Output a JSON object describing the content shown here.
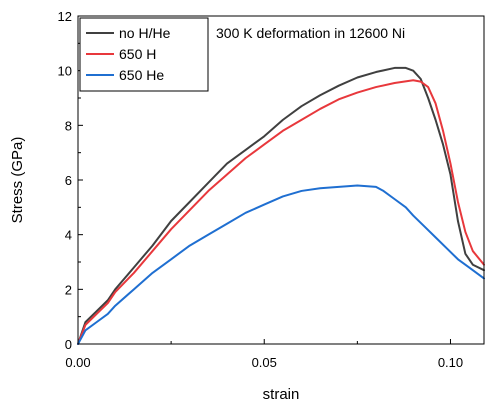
{
  "chart_data": {
    "type": "line",
    "annotation": "300 K deformation in 12600 Ni",
    "xlabel": "strain",
    "ylabel": "Stress (GPa)",
    "xlim": [
      0.0,
      0.109
    ],
    "ylim": [
      0,
      12
    ],
    "x_ticks": [
      0.0,
      0.05,
      0.1
    ],
    "x_tick_labels": [
      "0.00",
      "0.05",
      "0.10"
    ],
    "y_ticks": [
      0,
      2,
      4,
      6,
      8,
      10,
      12
    ],
    "y_tick_labels": [
      "0",
      "2",
      "4",
      "6",
      "8",
      "10",
      "12"
    ],
    "grid": false,
    "legend_position": "top-left",
    "series": [
      {
        "name": "no H/He",
        "color": "#404040",
        "x": [
          0.0,
          0.002,
          0.005,
          0.008,
          0.01,
          0.015,
          0.02,
          0.025,
          0.03,
          0.035,
          0.04,
          0.045,
          0.05,
          0.055,
          0.06,
          0.065,
          0.07,
          0.075,
          0.08,
          0.085,
          0.088,
          0.09,
          0.092,
          0.094,
          0.096,
          0.098,
          0.1,
          0.102,
          0.104,
          0.106,
          0.109
        ],
        "y": [
          0.0,
          0.8,
          1.2,
          1.6,
          2.0,
          2.8,
          3.6,
          4.5,
          5.2,
          5.9,
          6.6,
          7.1,
          7.6,
          8.2,
          8.7,
          9.1,
          9.45,
          9.75,
          9.95,
          10.1,
          10.1,
          10.0,
          9.7,
          9.0,
          8.2,
          7.3,
          6.2,
          4.5,
          3.3,
          2.9,
          2.7
        ]
      },
      {
        "name": "650 H",
        "color": "#e8383c",
        "x": [
          0.0,
          0.002,
          0.005,
          0.008,
          0.01,
          0.015,
          0.02,
          0.025,
          0.03,
          0.035,
          0.04,
          0.045,
          0.05,
          0.055,
          0.06,
          0.065,
          0.07,
          0.075,
          0.08,
          0.085,
          0.09,
          0.092,
          0.094,
          0.096,
          0.098,
          0.1,
          0.102,
          0.104,
          0.106,
          0.109
        ],
        "y": [
          0.0,
          0.7,
          1.1,
          1.5,
          1.9,
          2.6,
          3.4,
          4.2,
          4.9,
          5.6,
          6.2,
          6.8,
          7.3,
          7.8,
          8.2,
          8.6,
          8.95,
          9.2,
          9.4,
          9.55,
          9.65,
          9.6,
          9.4,
          8.8,
          7.8,
          6.6,
          5.2,
          4.1,
          3.4,
          2.9
        ]
      },
      {
        "name": "650 He",
        "color": "#1f6fd1",
        "x": [
          0.0,
          0.002,
          0.005,
          0.008,
          0.01,
          0.015,
          0.02,
          0.025,
          0.03,
          0.035,
          0.04,
          0.045,
          0.05,
          0.055,
          0.06,
          0.065,
          0.07,
          0.075,
          0.08,
          0.082,
          0.085,
          0.088,
          0.09,
          0.093,
          0.096,
          0.099,
          0.102,
          0.105,
          0.109
        ],
        "y": [
          0.0,
          0.5,
          0.8,
          1.1,
          1.4,
          2.0,
          2.6,
          3.1,
          3.6,
          4.0,
          4.4,
          4.8,
          5.1,
          5.4,
          5.6,
          5.7,
          5.75,
          5.8,
          5.75,
          5.6,
          5.3,
          5.0,
          4.7,
          4.3,
          3.9,
          3.5,
          3.1,
          2.8,
          2.4
        ]
      }
    ]
  }
}
